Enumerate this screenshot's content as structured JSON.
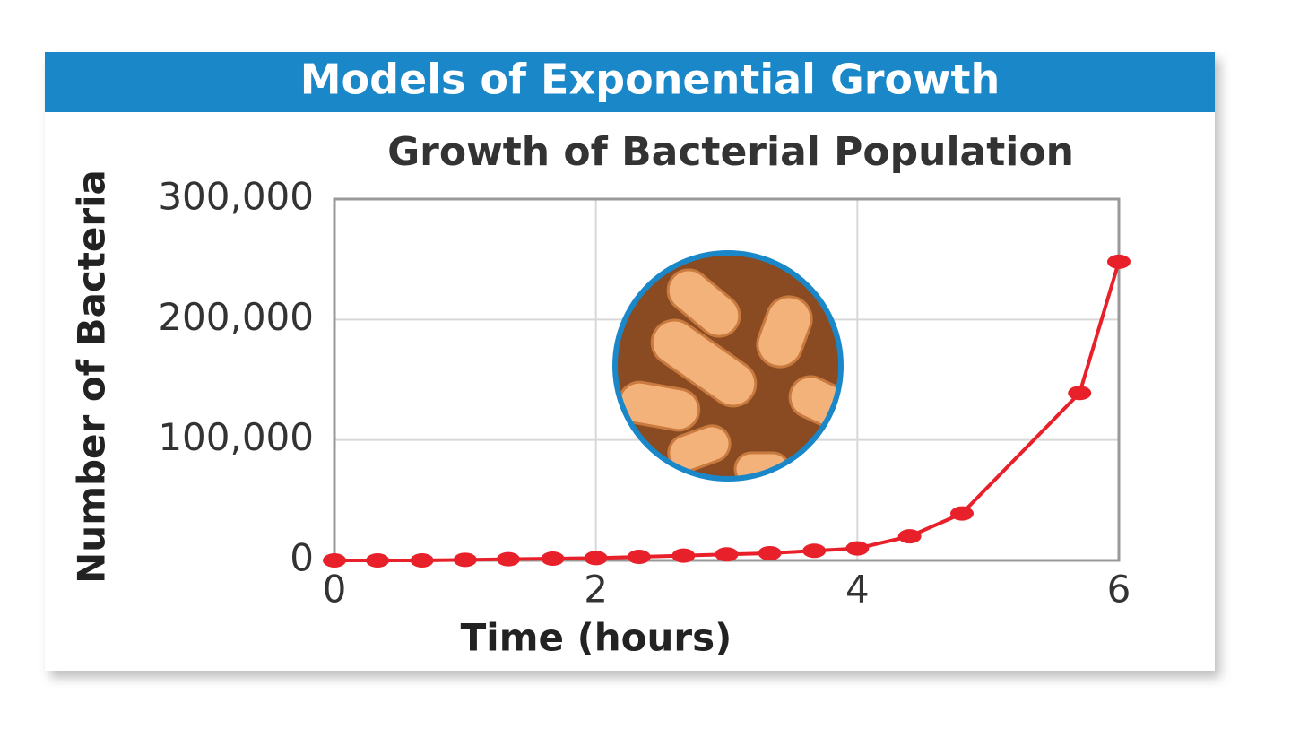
{
  "header": {
    "title": "Models of Exponential Growth"
  },
  "chart_data": {
    "type": "line",
    "title": "Growth of Bacterial Population",
    "xlabel": "Time (hours)",
    "ylabel": "Number of Bacteria",
    "x": [
      0,
      0.33,
      0.67,
      1,
      1.33,
      1.67,
      2,
      2.33,
      2.67,
      3,
      3.33,
      3.67,
      4,
      4.4,
      4.8,
      5.7,
      6
    ],
    "series": [
      {
        "color": "#e8202a",
        "values": [
          0,
          0,
          0,
          500,
          1000,
          1500,
          2000,
          3000,
          4000,
          5000,
          6000,
          8000,
          10000,
          20000,
          39000,
          139000,
          248000
        ]
      }
    ],
    "xlim": [
      0,
      6
    ],
    "xticks": [
      0,
      2,
      4,
      6
    ],
    "ylim": [
      0,
      300000
    ],
    "yticks": [
      0,
      {
        "value": 100000,
        "label": "100,000"
      },
      {
        "value": 200000,
        "label": "200,000"
      },
      {
        "value": 300000,
        "label": "300,000"
      }
    ],
    "grid": true
  }
}
